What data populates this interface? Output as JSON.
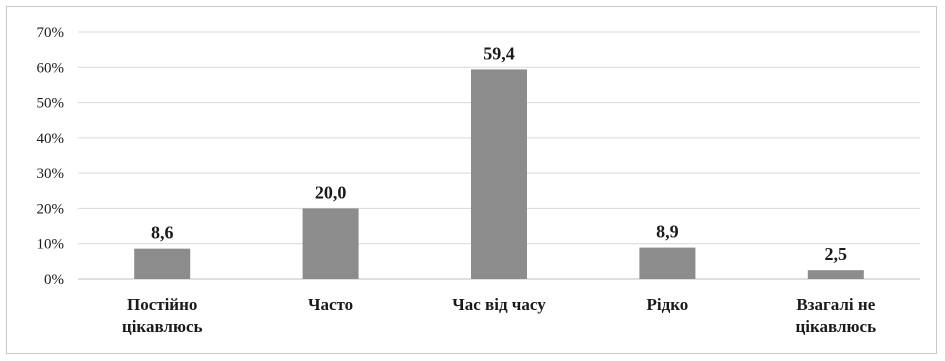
{
  "chart_data": {
    "type": "bar",
    "categories": [
      [
        "Постійно",
        "цікавлюсь"
      ],
      [
        "Часто"
      ],
      [
        "Час від часу"
      ],
      [
        "Рідко"
      ],
      [
        "Взагалі не",
        "цікавлюсь"
      ]
    ],
    "values": [
      8.6,
      20.0,
      59.4,
      8.9,
      2.5
    ],
    "data_labels": [
      "8,6",
      "20,0",
      "59,4",
      "8,9",
      "2,5"
    ],
    "ylim": [
      0,
      70
    ],
    "yticks": [
      0,
      10,
      20,
      30,
      40,
      50,
      60,
      70
    ],
    "ytick_labels": [
      "0%",
      "10%",
      "20%",
      "30%",
      "40%",
      "50%",
      "60%",
      "70%"
    ],
    "title": "",
    "xlabel": "",
    "ylabel": "",
    "grid": true,
    "legend": "none",
    "colors": {
      "bar": "#8c8c8c",
      "grid": "#d9d9d9",
      "text": "#1a1a1a",
      "frame": "#c8c8c8"
    }
  }
}
